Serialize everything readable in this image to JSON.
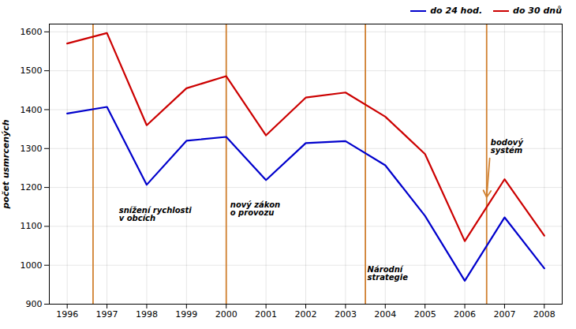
{
  "chart_data": {
    "type": "line",
    "x": [
      1996,
      1997,
      1998,
      1999,
      2000,
      2001,
      2002,
      2003,
      2004,
      2005,
      2006,
      2007,
      2008
    ],
    "series": [
      {
        "name": "do 24 hod.",
        "color": "#0000cc",
        "values": [
          1390,
          1407,
          1207,
          1320,
          1330,
          1219,
          1314,
          1319,
          1257,
          1127,
          960,
          1123,
          992
        ]
      },
      {
        "name": "do 30 dnů",
        "color": "#cc0000",
        "values": [
          1570,
          1597,
          1360,
          1455,
          1486,
          1334,
          1431,
          1444,
          1382,
          1286,
          1062,
          1221,
          1076
        ]
      }
    ],
    "xlim": [
      1995.55,
      2008.45
    ],
    "xticks": [
      1996,
      1997,
      1998,
      1999,
      2000,
      2001,
      2002,
      2003,
      2004,
      2005,
      2006,
      2007,
      2008
    ],
    "ylim": [
      900,
      1620
    ],
    "yticks": [
      900,
      1000,
      1100,
      1200,
      1300,
      1400,
      1500,
      1600
    ],
    "ylabel": "počet usmrcených",
    "vlines": {
      "x": [
        1996.65,
        2000.0,
        2003.5,
        2006.55
      ],
      "color": "#d08030"
    },
    "annotations": [
      {
        "text": "snížení rychlosti\nv obcích",
        "x": 1997.3,
        "y": 1130
      },
      {
        "text": "nový zákon\no provozu",
        "x": 2000.1,
        "y": 1145
      },
      {
        "text": "Národní\nstrategie",
        "x": 2003.55,
        "y": 978
      },
      {
        "text": "bodový\nsystém",
        "x": 2006.65,
        "y": 1305,
        "arrow": {
          "x": 2006.55,
          "y": 1175
        }
      }
    ],
    "grid": true,
    "legend": "upper right"
  }
}
